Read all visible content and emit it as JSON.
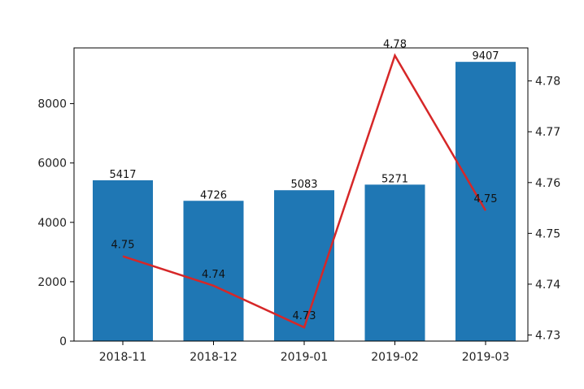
{
  "chart_data": {
    "type": "bar",
    "categories": [
      "2018-11",
      "2018-12",
      "2019-01",
      "2019-02",
      "2019-03"
    ],
    "series": [
      {
        "type": "bar",
        "axis": "left",
        "color": "#1f77b4",
        "values": [
          5417,
          4726,
          5083,
          5271,
          9407
        ],
        "labels": [
          "5417",
          "4726",
          "5083",
          "5271",
          "9407"
        ]
      },
      {
        "type": "line",
        "axis": "right",
        "color": "#d62728",
        "values": [
          4.7455,
          4.7397,
          4.7315,
          4.785,
          4.7545
        ],
        "labels": [
          "4.75",
          "4.74",
          "4.73",
          "4.78",
          "4.75"
        ]
      }
    ],
    "y_left": {
      "lim": [
        0,
        9877
      ],
      "ticks": [
        0,
        2000,
        4000,
        6000,
        8000
      ],
      "tick_labels": [
        "0",
        "2000",
        "4000",
        "6000",
        "8000"
      ]
    },
    "y_right": {
      "lim": [
        4.7288,
        4.7865
      ],
      "ticks": [
        4.73,
        4.74,
        4.75,
        4.76,
        4.77,
        4.78
      ],
      "tick_labels": [
        "4.73",
        "4.74",
        "4.75",
        "4.76",
        "4.77",
        "4.78"
      ]
    },
    "grid": false,
    "legend": "none"
  }
}
